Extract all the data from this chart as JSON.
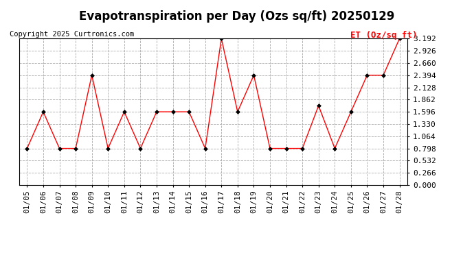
{
  "title": "Evapotranspiration per Day (Ozs sq/ft) 20250129",
  "copyright": "Copyright 2025 Curtronics.com",
  "legend_label": "ET (Oz/sq ft)",
  "dates": [
    "01/05",
    "01/06",
    "01/07",
    "01/08",
    "01/09",
    "01/10",
    "01/11",
    "01/12",
    "01/13",
    "01/14",
    "01/15",
    "01/16",
    "01/17",
    "01/18",
    "01/19",
    "01/20",
    "01/21",
    "01/22",
    "01/23",
    "01/24",
    "01/25",
    "01/26",
    "01/27",
    "01/28"
  ],
  "values": [
    0.798,
    1.596,
    0.798,
    0.798,
    2.394,
    0.798,
    1.596,
    0.798,
    1.596,
    1.596,
    1.596,
    0.798,
    3.192,
    1.596,
    2.394,
    0.798,
    0.798,
    0.798,
    1.729,
    0.798,
    1.596,
    2.394,
    2.394,
    3.192
  ],
  "line_color": "red",
  "marker_color": "black",
  "background_color": "#ffffff",
  "grid_color": "#aaaaaa",
  "ylim": [
    0.0,
    3.192
  ],
  "yticks": [
    0.0,
    0.266,
    0.532,
    0.798,
    1.064,
    1.33,
    1.596,
    1.862,
    2.128,
    2.394,
    2.66,
    2.926,
    3.192
  ],
  "title_fontsize": 12,
  "legend_fontsize": 9,
  "copyright_fontsize": 7.5,
  "tick_fontsize": 8
}
